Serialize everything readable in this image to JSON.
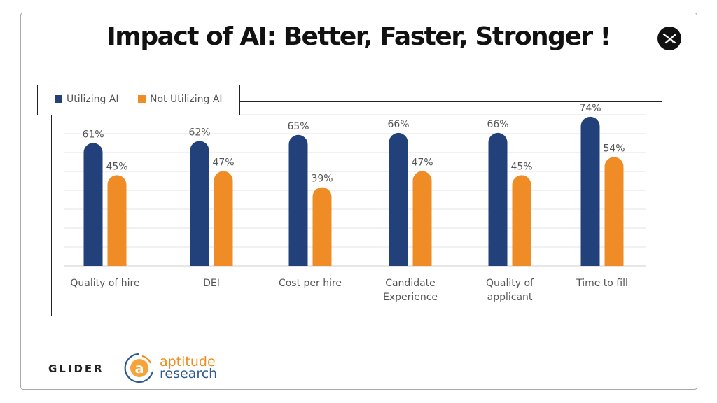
{
  "slide": {
    "title": "Impact of AI: Better, Faster, Stronger !",
    "footer": {
      "brand_left": "GLIDER",
      "brand_right_line1": "aptitude",
      "brand_right_line2": "research",
      "brand_right_mark": "a"
    }
  },
  "colors": {
    "utilizing": "#22417a",
    "not_utilizing": "#f08c26",
    "gridline": "#e3e3e3",
    "label_text": "#555555"
  },
  "icons": {
    "corner_logo": "glider-logo-icon",
    "aptitude_logo": "aptitude-logo-icon"
  },
  "chart_data": {
    "type": "bar",
    "categories": [
      [
        "Quality of hire"
      ],
      [
        "DEI"
      ],
      [
        "Cost per hire"
      ],
      [
        "Candidate",
        "Experience"
      ],
      [
        "Quality of",
        "applicant"
      ],
      [
        "Time to fill"
      ]
    ],
    "series": [
      {
        "name": "Utilizing AI",
        "values": [
          61,
          62,
          65,
          66,
          66,
          74
        ],
        "labels": [
          "61%",
          "62%",
          "65%",
          "66%",
          "66%",
          "74%"
        ]
      },
      {
        "name": "Not Utilizing AI",
        "values": [
          45,
          47,
          39,
          47,
          45,
          54
        ],
        "labels": [
          "45%",
          "47%",
          "39%",
          "47%",
          "45%",
          "54%"
        ]
      }
    ],
    "ylim": [
      0,
      80
    ],
    "grid": true,
    "legend": "top-left"
  }
}
